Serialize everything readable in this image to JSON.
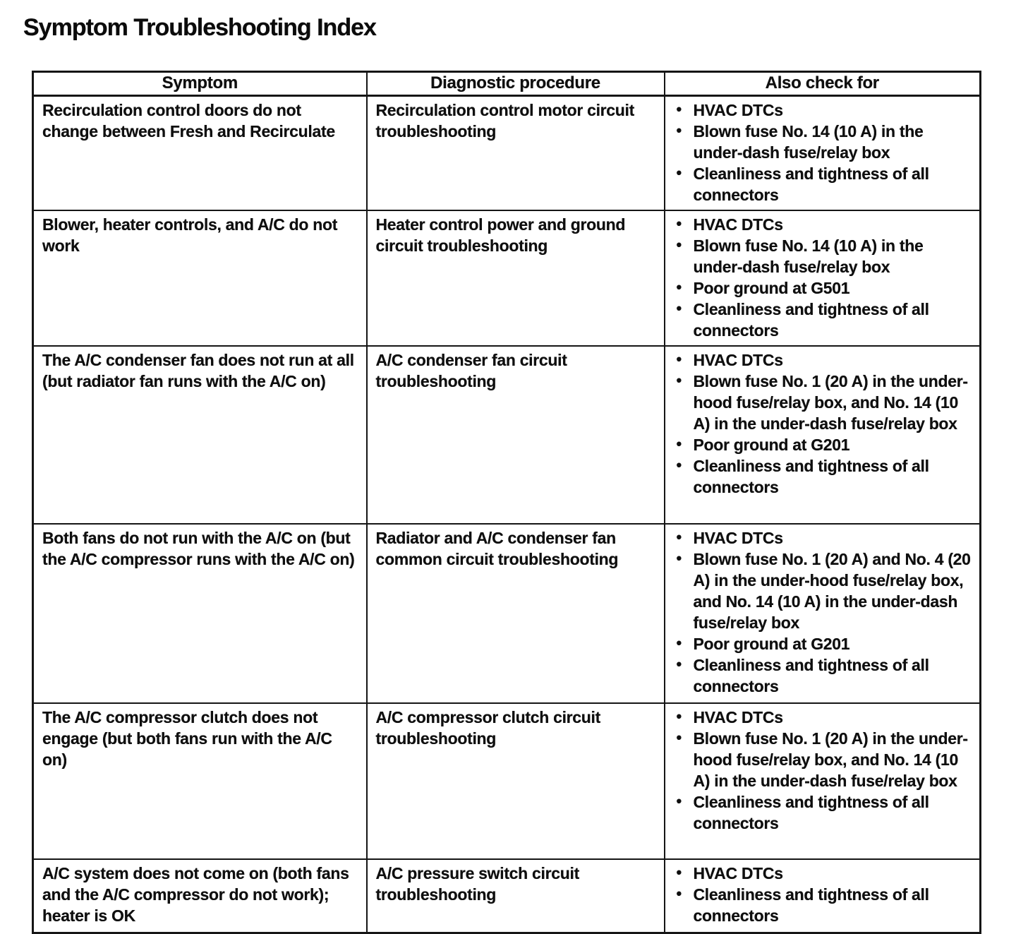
{
  "title": "Symptom Troubleshooting Index",
  "colors": {
    "ink": "#0f0f0f",
    "paper": "#ffffff"
  },
  "table": {
    "headers": [
      "Symptom",
      "Diagnostic procedure",
      "Also check for"
    ],
    "rows": [
      {
        "symptom": "Recirculation control doors do not change between Fresh and Recirculate",
        "procedure": "Recirculation control motor circuit troubleshooting",
        "checks": [
          "HVAC DTCs",
          "Blown fuse No. 14 (10 A) in the under-dash fuse/relay box",
          "Cleanliness and tightness of all connectors"
        ]
      },
      {
        "symptom": "Blower, heater controls, and A/C do not work",
        "procedure": "Heater control power and ground circuit troubleshooting",
        "checks": [
          "HVAC DTCs",
          "Blown fuse No. 14 (10 A) in the under-dash fuse/relay box",
          "Poor ground at G501",
          "Cleanliness and tightness of all connectors"
        ]
      },
      {
        "symptom": "The A/C condenser fan does not run at all (but radiator fan runs with the A/C on)",
        "procedure": "A/C condenser fan circuit troubleshooting",
        "checks": [
          "HVAC DTCs",
          "Blown fuse No. 1 (20 A) in the under-hood fuse/relay box, and No. 14 (10 A) in the under-dash fuse/relay box",
          "Poor ground at G201",
          "Cleanliness and tightness of all connectors"
        ]
      },
      {
        "symptom": "Both fans do not run with the A/C on (but the A/C compressor runs with the A/C on)",
        "procedure": "Radiator and A/C condenser fan common circuit troubleshooting",
        "checks": [
          "HVAC DTCs",
          "Blown fuse No. 1 (20 A) and No. 4 (20 A) in the under-hood fuse/relay box, and No. 14 (10 A) in the under-dash fuse/relay box",
          "Poor ground at G201",
          "Cleanliness and tightness of all connectors"
        ]
      },
      {
        "symptom": "The A/C compressor clutch does not engage (but both fans run with the A/C on)",
        "procedure": "A/C compressor clutch circuit troubleshooting",
        "checks": [
          "HVAC DTCs",
          "Blown fuse No. 1 (20 A) in the under-hood fuse/relay box, and No. 14 (10 A) in the under-dash fuse/relay box",
          "Cleanliness and tightness of all connectors"
        ]
      },
      {
        "symptom": "A/C system does not come on (both fans and the A/C compressor do not work); heater is OK",
        "procedure": "A/C pressure switch circuit troubleshooting",
        "checks": [
          "HVAC DTCs",
          "Cleanliness and tightness of all connectors"
        ]
      }
    ]
  }
}
